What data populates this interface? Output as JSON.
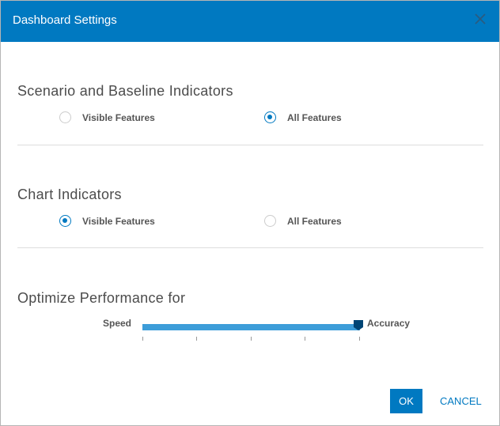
{
  "dialog": {
    "title": "Dashboard Settings",
    "close_icon": "close-icon"
  },
  "scenario": {
    "heading": "Scenario and Baseline Indicators",
    "options": [
      "Visible Features",
      "All Features"
    ],
    "selected": "All Features"
  },
  "chart": {
    "heading": "Chart Indicators",
    "options": [
      "Visible Features",
      "All Features"
    ],
    "selected": "Visible Features"
  },
  "performance": {
    "heading": "Optimize Performance for",
    "min_label": "Speed",
    "max_label": "Accuracy",
    "value_percent": 100,
    "tick_count": 5
  },
  "buttons": {
    "ok": "OK",
    "cancel": "CANCEL"
  },
  "colors": {
    "accent": "#0079c1",
    "slider_fill": "#3d9dd9",
    "thumb": "#004575"
  }
}
